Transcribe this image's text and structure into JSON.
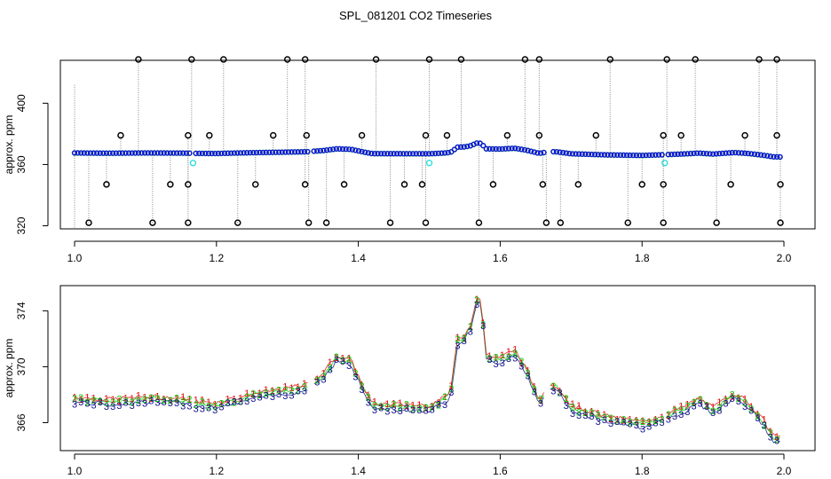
{
  "title": "SPL_081201  CO2 Timeseries",
  "colors": {
    "black": "#000000",
    "cyan": "#33dddd",
    "blue": "#1010dd",
    "red": "#dd1010",
    "green": "#10cc10",
    "navy": "#101088",
    "grey": "#888888"
  },
  "chart_data": [
    {
      "type": "scatter",
      "ylabel": "approx. ppm",
      "xlim": [
        1.0,
        2.0
      ],
      "ylim": [
        318,
        428
      ],
      "xticks": [
        1.0,
        1.2,
        1.4,
        1.6,
        1.8,
        2.0
      ],
      "xtick_labels": [
        "1.0",
        "1.2",
        "1.4",
        "1.6",
        "1.8",
        "2.0"
      ],
      "yticks": [
        320,
        360,
        400
      ],
      "ytick_labels": [
        "320",
        "360",
        "400"
      ],
      "outlier_high_x": [
        1.09,
        1.165,
        1.21,
        1.3,
        1.325,
        1.425,
        1.5,
        1.545,
        1.635,
        1.655,
        1.755,
        1.835,
        1.875,
        1.965,
        1.99
      ],
      "outlier_high_y": 430,
      "outlier_low_x": [
        1.02,
        1.11,
        1.16,
        1.23,
        1.33,
        1.355,
        1.445,
        1.495,
        1.57,
        1.665,
        1.685,
        1.78,
        1.83,
        1.905,
        1.995
      ],
      "outlier_low_y": 322,
      "outlier_mid_x": [
        1.045,
        1.135,
        1.16,
        1.255,
        1.325,
        1.38,
        1.465,
        1.49,
        1.59,
        1.66,
        1.71,
        1.8,
        1.83,
        1.925,
        1.995
      ],
      "outlier_mid_y": 347,
      "outlier_upper_x": [
        1.065,
        1.16,
        1.19,
        1.28,
        1.327,
        1.405,
        1.495,
        1.525,
        1.61,
        1.655,
        1.735,
        1.83,
        1.855,
        1.945,
        1.99
      ],
      "outlier_upper_y": 379,
      "cyan_x": [
        1.167,
        1.5,
        1.832
      ],
      "cyan_y": 361
    },
    {
      "type": "scatter",
      "ylabel": "approx. ppm",
      "xlim": [
        1.0,
        2.0
      ],
      "ylim": [
        364.0,
        375.8
      ],
      "xticks": [
        1.0,
        1.2,
        1.4,
        1.6,
        1.8,
        2.0
      ],
      "xtick_labels": [
        "1.0",
        "1.2",
        "1.4",
        "1.6",
        "1.8",
        "2.0"
      ],
      "yticks": [
        366,
        370,
        374
      ],
      "ytick_labels": [
        "366",
        "370",
        "374"
      ],
      "series_labels": [
        "1",
        "2",
        "3"
      ],
      "gaps": [
        [
          1.165,
          1.17
        ],
        [
          1.33,
          1.335
        ],
        [
          1.665,
          1.67
        ],
        [
          1.83,
          1.835
        ]
      ],
      "profile_x": [
        1.0,
        1.05,
        1.1,
        1.15,
        1.165,
        1.17,
        1.2,
        1.25,
        1.3,
        1.33,
        1.335,
        1.35,
        1.37,
        1.39,
        1.41,
        1.42,
        1.5,
        1.52,
        1.53,
        1.54,
        1.55,
        1.56,
        1.565,
        1.57,
        1.575,
        1.58,
        1.6,
        1.62,
        1.635,
        1.645,
        1.655,
        1.665,
        1.67,
        1.68,
        1.7,
        1.75,
        1.8,
        1.83,
        1.835,
        1.86,
        1.88,
        1.9,
        1.93,
        1.95,
        1.97,
        1.985,
        1.995
      ],
      "profile_y": [
        367.6,
        367.4,
        367.6,
        367.5,
        367.4,
        367.3,
        367.2,
        367.8,
        368.2,
        368.5,
        368.8,
        369.3,
        370.6,
        370.2,
        368.0,
        367.1,
        367.0,
        367.5,
        368.0,
        371.8,
        372.0,
        373.0,
        374.5,
        375.1,
        373.5,
        370.6,
        370.4,
        371.0,
        369.8,
        368.6,
        367.3,
        368.2,
        368.6,
        368.4,
        367.0,
        366.2,
        365.8,
        366.3,
        366.4,
        366.9,
        367.5,
        366.8,
        367.9,
        367.2,
        366.0,
        364.8,
        364.7
      ]
    }
  ]
}
